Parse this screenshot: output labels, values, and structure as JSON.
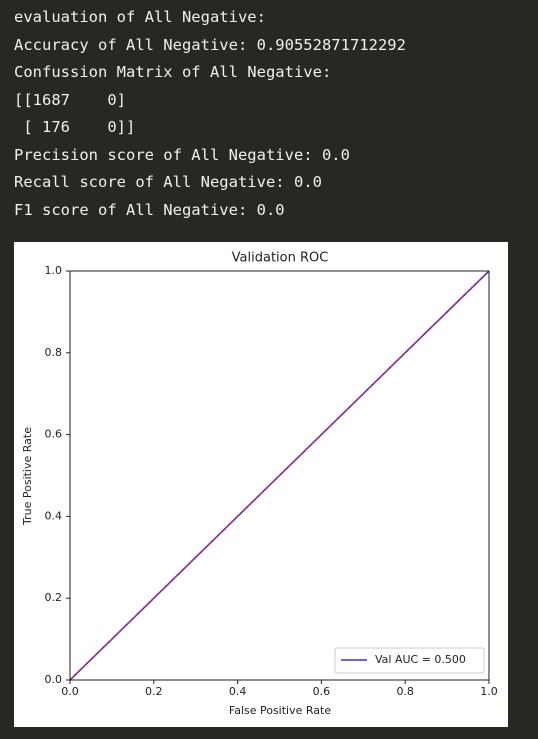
{
  "output": {
    "lines": [
      "evaluation of All Negative:",
      "Accuracy of All Negative: 0.90552871712292",
      "Confussion Matrix of All Negative:",
      "[[1687    0]",
      " [ 176    0]]",
      "Precision score of All Negative: 0.0",
      "Recall score of All Negative: 0.0",
      "F1 score of All Negative: 0.0"
    ]
  },
  "chart_data": {
    "type": "line",
    "title": "Validation ROC",
    "x_label": "False Positive Rate",
    "y_label": "True Positive Rate",
    "series": [
      {
        "name": "Val AUC = 0.500",
        "color": "#3333cc",
        "x": [
          0,
          1
        ],
        "values": [
          0,
          1
        ]
      },
      {
        "color": "#cc3366",
        "x": [
          0,
          1
        ],
        "values": [
          0,
          1
        ],
        "dashed": true
      }
    ],
    "xlim": [
      0,
      1
    ],
    "ylim": [
      0,
      1
    ],
    "xticks": [
      {
        "value": 0,
        "label": "0.0"
      },
      {
        "value": 0.2,
        "label": "0.2"
      },
      {
        "value": 0.4,
        "label": "0.4"
      },
      {
        "value": 0.6,
        "label": "0.6"
      },
      {
        "value": 0.8,
        "label": "0.8"
      },
      {
        "value": 1,
        "label": "1.0"
      }
    ],
    "yticks": [
      {
        "value": 0,
        "label": "0.0"
      },
      {
        "value": 0.2,
        "label": "0.2"
      },
      {
        "value": 0.4,
        "label": "0.4"
      },
      {
        "value": 0.6,
        "label": "0.6"
      },
      {
        "value": 0.8,
        "label": "0.8"
      },
      {
        "value": 1,
        "label": "1.0"
      }
    ],
    "legend": "lower right",
    "grid": false
  }
}
